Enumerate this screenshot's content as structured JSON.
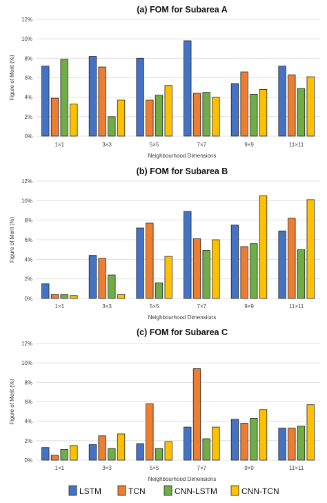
{
  "colors": {
    "LSTM": "#4472c4",
    "TCN": "#ed7d31",
    "CNN-LSTM": "#70ad47",
    "CNN-TCN": "#ffc000"
  },
  "legend": [
    "LSTM",
    "TCN",
    "CNN-LSTM",
    "CNN-TCN"
  ],
  "chart_data": [
    {
      "type": "bar",
      "title": "(a) FOM for Subarea A",
      "xlabel": "Neighbourhood Dimensions",
      "ylabel": "Figure of Merit (%)",
      "ylim": [
        0,
        12
      ],
      "yticks": [
        "0%",
        "2%",
        "4%",
        "6%",
        "8%",
        "10%",
        "12%"
      ],
      "grid": true,
      "categories": [
        "1×1",
        "3×3",
        "5×5",
        "7×7",
        "9×9",
        "11×11"
      ],
      "series": [
        {
          "name": "LSTM",
          "values": [
            7.2,
            8.2,
            8.0,
            9.8,
            5.4,
            7.2
          ]
        },
        {
          "name": "TCN",
          "values": [
            3.9,
            7.1,
            3.7,
            4.4,
            6.6,
            6.3
          ]
        },
        {
          "name": "CNN-LSTM",
          "values": [
            7.9,
            2.0,
            4.2,
            4.5,
            4.3,
            4.9
          ]
        },
        {
          "name": "CNN-TCN",
          "values": [
            3.3,
            3.7,
            5.2,
            4.0,
            4.8,
            6.1
          ]
        }
      ]
    },
    {
      "type": "bar",
      "title": "(b) FOM for Subarea B",
      "xlabel": "Neighbourhood Dimensions",
      "ylabel": "Figure of Merit (%)",
      "ylim": [
        0,
        12
      ],
      "yticks": [
        "0%",
        "2%",
        "4%",
        "6%",
        "8%",
        "10%",
        "12%"
      ],
      "grid": true,
      "categories": [
        "1×1",
        "3×3",
        "5×5",
        "7×7",
        "9×9",
        "11×11"
      ],
      "series": [
        {
          "name": "LSTM",
          "values": [
            1.5,
            4.4,
            7.2,
            8.9,
            7.5,
            6.9
          ]
        },
        {
          "name": "TCN",
          "values": [
            0.4,
            4.1,
            7.7,
            6.1,
            5.3,
            8.2
          ]
        },
        {
          "name": "CNN-LSTM",
          "values": [
            0.4,
            2.4,
            1.6,
            4.9,
            5.6,
            5.0
          ]
        },
        {
          "name": "CNN-TCN",
          "values": [
            0.3,
            0.4,
            4.3,
            6.0,
            10.5,
            10.1
          ]
        }
      ]
    },
    {
      "type": "bar",
      "title": "(c) FOM for Subarea C",
      "xlabel": "Neighbourhood Dimensions",
      "ylabel": "Figure of Merit (%)",
      "ylim": [
        0,
        12
      ],
      "yticks": [
        "0%",
        "2%",
        "4%",
        "6%",
        "8%",
        "10%",
        "12%"
      ],
      "grid": true,
      "categories": [
        "1×1",
        "3×3",
        "5×5",
        "7×7",
        "9×9",
        "11×11"
      ],
      "series": [
        {
          "name": "LSTM",
          "values": [
            1.3,
            1.6,
            1.7,
            3.4,
            4.2,
            3.3
          ]
        },
        {
          "name": "TCN",
          "values": [
            0.5,
            2.5,
            5.8,
            9.4,
            3.8,
            3.3
          ]
        },
        {
          "name": "CNN-LSTM",
          "values": [
            1.1,
            1.2,
            1.2,
            2.2,
            4.3,
            3.5
          ]
        },
        {
          "name": "CNN-TCN",
          "values": [
            1.5,
            2.7,
            1.9,
            3.4,
            5.2,
            5.7
          ]
        }
      ]
    }
  ]
}
